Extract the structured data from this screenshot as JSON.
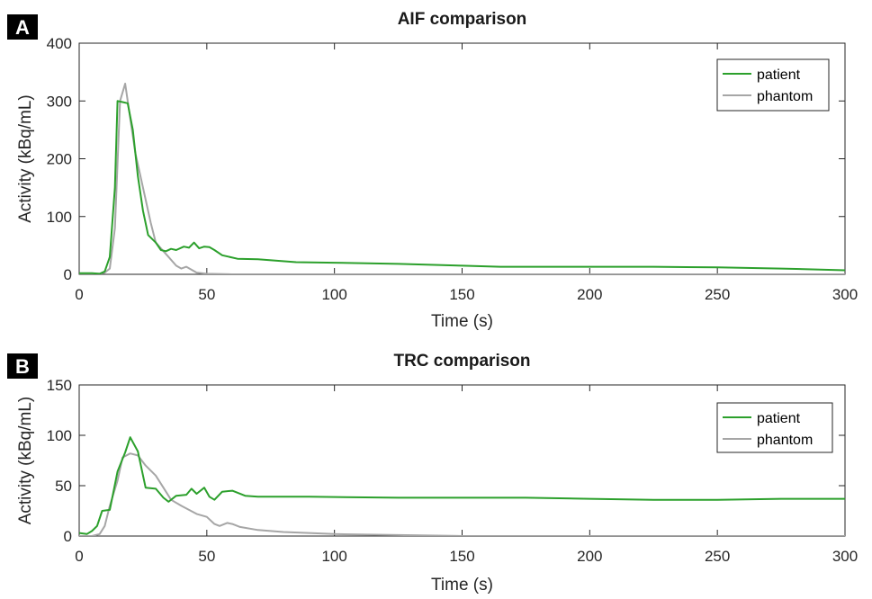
{
  "chart_data": [
    {
      "panel_label": "A",
      "type": "line",
      "title": "AIF comparison",
      "xlabel": "Time (s)",
      "ylabel": "Activity (kBq/mL)",
      "xlim": [
        0,
        300
      ],
      "ylim": [
        0,
        400
      ],
      "xticks": [
        0,
        50,
        100,
        150,
        200,
        250,
        300
      ],
      "yticks": [
        0,
        100,
        200,
        300,
        400
      ],
      "grid": false,
      "legend_position": "top-right",
      "series": [
        {
          "name": "patient",
          "color": "#2ca02c",
          "points": [
            [
              0,
              2
            ],
            [
              5,
              2
            ],
            [
              8,
              1
            ],
            [
              10,
              5
            ],
            [
              12,
              30
            ],
            [
              14,
              150
            ],
            [
              15,
              300
            ],
            [
              17,
              298
            ],
            [
              19,
              296
            ],
            [
              21,
              250
            ],
            [
              23,
              170
            ],
            [
              25,
              110
            ],
            [
              27,
              68
            ],
            [
              30,
              55
            ],
            [
              32,
              42
            ],
            [
              34,
              40
            ],
            [
              36,
              44
            ],
            [
              38,
              42
            ],
            [
              41,
              48
            ],
            [
              43,
              46
            ],
            [
              45,
              55
            ],
            [
              47,
              45
            ],
            [
              49,
              48
            ],
            [
              51,
              47
            ],
            [
              53,
              42
            ],
            [
              56,
              33
            ],
            [
              62,
              27
            ],
            [
              70,
              26
            ],
            [
              85,
              21
            ],
            [
              100,
              20
            ],
            [
              125,
              18
            ],
            [
              150,
              15
            ],
            [
              165,
              13
            ],
            [
              200,
              13
            ],
            [
              225,
              13
            ],
            [
              250,
              12
            ],
            [
              275,
              10
            ],
            [
              300,
              7
            ]
          ]
        },
        {
          "name": "phantom",
          "color": "#a6a6a6",
          "points": [
            [
              0,
              1
            ],
            [
              8,
              1
            ],
            [
              10,
              3
            ],
            [
              12,
              10
            ],
            [
              14,
              80
            ],
            [
              16,
              300
            ],
            [
              18,
              330
            ],
            [
              20,
              270
            ],
            [
              22,
              210
            ],
            [
              25,
              150
            ],
            [
              28,
              90
            ],
            [
              30,
              55
            ],
            [
              33,
              40
            ],
            [
              35,
              30
            ],
            [
              38,
              15
            ],
            [
              40,
              10
            ],
            [
              42,
              13
            ],
            [
              44,
              8
            ],
            [
              46,
              3
            ],
            [
              50,
              1
            ],
            [
              60,
              0
            ],
            [
              100,
              0
            ],
            [
              200,
              0
            ],
            [
              300,
              0
            ]
          ]
        }
      ]
    },
    {
      "panel_label": "B",
      "type": "line",
      "title": "TRC comparison",
      "xlabel": "Time (s)",
      "ylabel": "Activity (kBq/mL)",
      "xlim": [
        0,
        300
      ],
      "ylim": [
        0,
        150
      ],
      "xticks": [
        0,
        50,
        100,
        150,
        200,
        250,
        300
      ],
      "yticks": [
        0,
        50,
        100,
        150
      ],
      "grid": false,
      "legend_position": "top-right",
      "series": [
        {
          "name": "patient",
          "color": "#2ca02c",
          "points": [
            [
              0,
              3
            ],
            [
              3,
              2
            ],
            [
              5,
              5
            ],
            [
              7,
              10
            ],
            [
              9,
              25
            ],
            [
              12,
              26
            ],
            [
              15,
              64
            ],
            [
              18,
              83
            ],
            [
              20,
              98
            ],
            [
              23,
              84
            ],
            [
              26,
              48
            ],
            [
              30,
              47
            ],
            [
              33,
              38
            ],
            [
              35,
              34
            ],
            [
              38,
              40
            ],
            [
              42,
              41
            ],
            [
              44,
              47
            ],
            [
              46,
              42
            ],
            [
              49,
              48
            ],
            [
              51,
              39
            ],
            [
              53,
              36
            ],
            [
              56,
              44
            ],
            [
              60,
              45
            ],
            [
              65,
              40
            ],
            [
              70,
              39
            ],
            [
              90,
              39
            ],
            [
              125,
              38
            ],
            [
              150,
              38
            ],
            [
              175,
              38
            ],
            [
              200,
              37
            ],
            [
              225,
              36
            ],
            [
              250,
              36
            ],
            [
              275,
              37
            ],
            [
              300,
              37
            ]
          ]
        },
        {
          "name": "phantom",
          "color": "#a6a6a6",
          "points": [
            [
              0,
              0
            ],
            [
              5,
              0
            ],
            [
              8,
              2
            ],
            [
              10,
              10
            ],
            [
              12,
              30
            ],
            [
              15,
              55
            ],
            [
              17,
              78
            ],
            [
              20,
              82
            ],
            [
              23,
              80
            ],
            [
              26,
              70
            ],
            [
              30,
              60
            ],
            [
              33,
              48
            ],
            [
              36,
              36
            ],
            [
              40,
              30
            ],
            [
              43,
              26
            ],
            [
              46,
              22
            ],
            [
              50,
              19
            ],
            [
              53,
              12
            ],
            [
              55,
              10
            ],
            [
              58,
              13
            ],
            [
              60,
              12
            ],
            [
              63,
              9
            ],
            [
              70,
              6
            ],
            [
              80,
              4
            ],
            [
              90,
              3
            ],
            [
              100,
              2
            ],
            [
              125,
              1
            ],
            [
              150,
              0
            ],
            [
              200,
              0
            ],
            [
              250,
              0
            ],
            [
              300,
              0
            ]
          ]
        }
      ]
    }
  ]
}
